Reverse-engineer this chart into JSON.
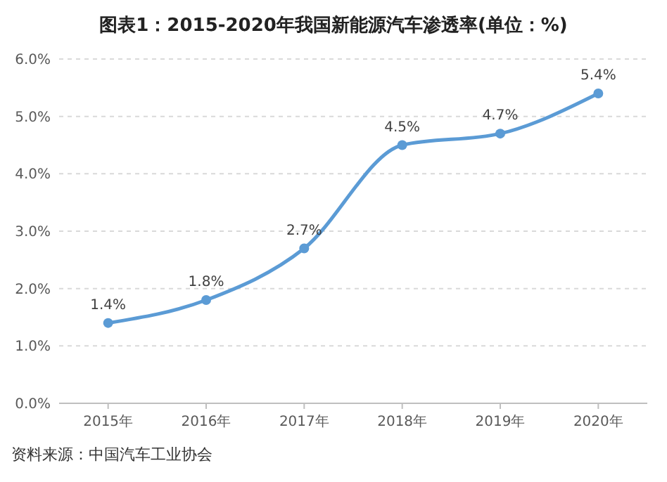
{
  "chart_data": {
    "type": "line",
    "title": "图表1：2015-2020年我国新能源汽车渗透率(单位：%)",
    "categories": [
      "2015年",
      "2016年",
      "2017年",
      "2018年",
      "2019年",
      "2020年"
    ],
    "series": [
      {
        "color": "#5b9bd5",
        "values": [
          1.4,
          1.8,
          2.7,
          4.5,
          4.7,
          5.4
        ],
        "value_labels": [
          "1.4%",
          "1.8%",
          "2.7%",
          "4.5%",
          "4.7%",
          "5.4%"
        ]
      }
    ],
    "ylim": [
      0,
      6
    ],
    "yticks": [
      {
        "value": 0,
        "label": "0.0%"
      },
      {
        "value": 1,
        "label": "1.0%"
      },
      {
        "value": 2,
        "label": "2.0%"
      },
      {
        "value": 3,
        "label": "3.0%"
      },
      {
        "value": 4,
        "label": "4.0%"
      },
      {
        "value": 5,
        "label": "5.0%"
      },
      {
        "value": 6,
        "label": "6.0%"
      }
    ],
    "grid": "y",
    "marker": "circle",
    "line_style": "solid",
    "annotations": [
      "资料来源：中国汽车工业协会"
    ]
  }
}
